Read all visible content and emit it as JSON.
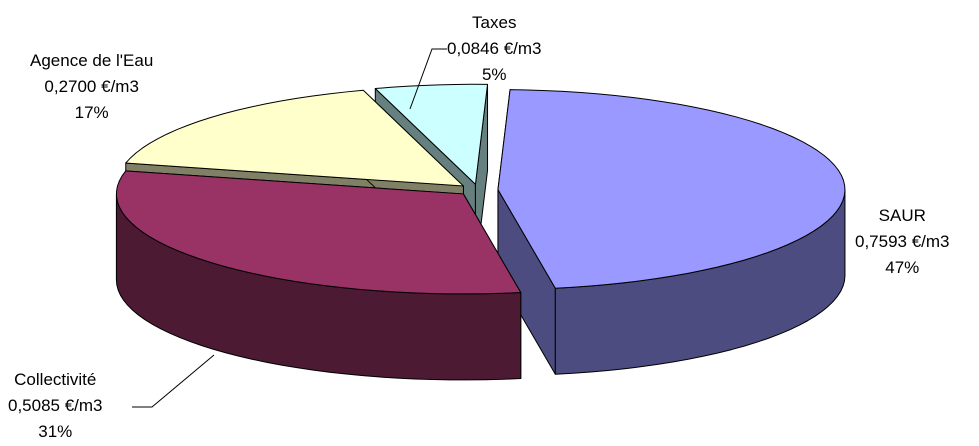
{
  "chart_data": {
    "type": "pie",
    "style": "3d-exploded",
    "slices": [
      {
        "label": "SAUR",
        "value_text": "0,7593 €/m3",
        "value": 0.7593,
        "percent_text": "47%",
        "percent": 47,
        "color": "#9999ff",
        "side_color": "#4c4c80"
      },
      {
        "label": "Collectivité",
        "value_text": "0,5085 €/m3",
        "value": 0.5085,
        "percent_text": "31%",
        "percent": 31,
        "color": "#993366",
        "side_color": "#4d1a33"
      },
      {
        "label": "Agence de l'Eau",
        "value_text": "0,2700 €/m3",
        "value": 0.27,
        "percent_text": "17%",
        "percent": 17,
        "color": "#ffffcc",
        "side_color": "#808066"
      },
      {
        "label": "Taxes",
        "value_text": "0,0846 €/m3",
        "value": 0.0846,
        "percent_text": "5%",
        "percent": 5,
        "color": "#ccffff",
        "side_color": "#668080"
      }
    ]
  }
}
